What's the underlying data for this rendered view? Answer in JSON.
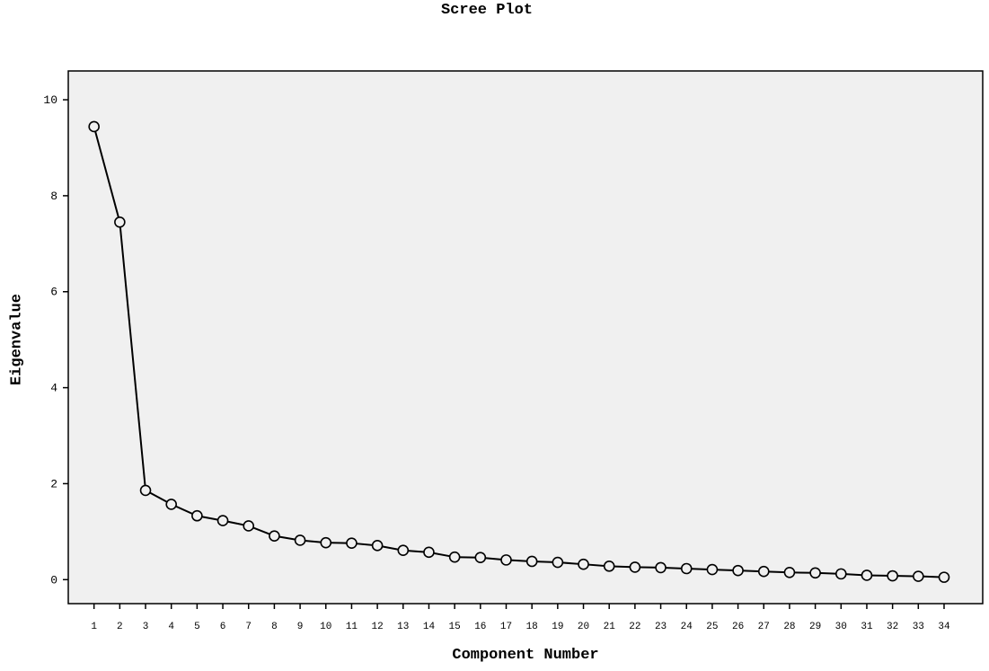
{
  "chart_data": {
    "type": "line",
    "title": "Scree Plot",
    "xlabel": "Component Number",
    "ylabel": "Eigenvalue",
    "x": [
      1,
      2,
      3,
      4,
      5,
      6,
      7,
      8,
      9,
      10,
      11,
      12,
      13,
      14,
      15,
      16,
      17,
      18,
      19,
      20,
      21,
      22,
      23,
      24,
      25,
      26,
      27,
      28,
      29,
      30,
      31,
      32,
      33,
      34
    ],
    "series": [
      {
        "values": [
          9.44,
          7.45,
          1.86,
          1.57,
          1.33,
          1.23,
          1.12,
          0.91,
          0.82,
          0.77,
          0.76,
          0.71,
          0.61,
          0.57,
          0.47,
          0.46,
          0.41,
          0.38,
          0.36,
          0.32,
          0.28,
          0.26,
          0.25,
          0.23,
          0.21,
          0.19,
          0.17,
          0.15,
          0.14,
          0.12,
          0.09,
          0.08,
          0.07,
          0.05
        ]
      }
    ],
    "xlim": [
      0,
      35.5
    ],
    "ylim": [
      -0.5,
      10.6
    ],
    "yticks": [
      0,
      2,
      4,
      6,
      8,
      10
    ],
    "grid": false,
    "plot_background": "#f0f0f0",
    "line_color": "#000000",
    "marker": "open-circle"
  }
}
